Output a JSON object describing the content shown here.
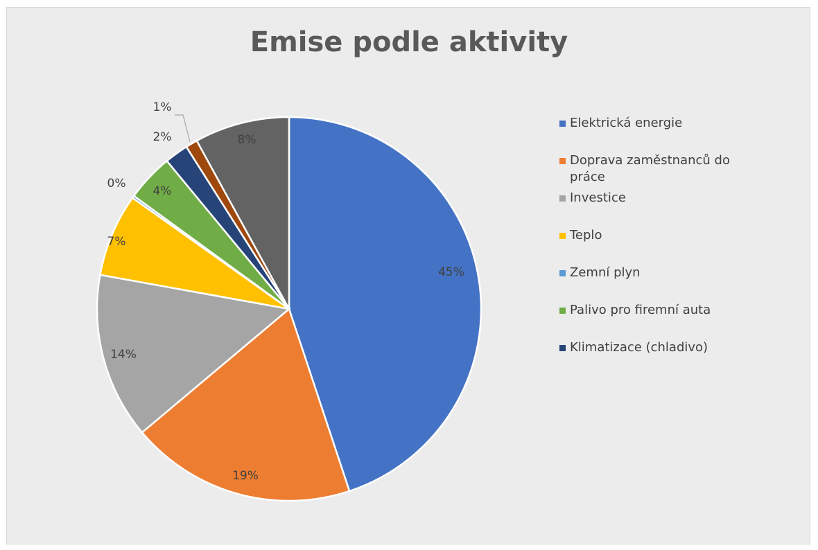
{
  "chart_data": {
    "type": "pie",
    "title": "Emise podle aktivity",
    "slices": [
      {
        "name": "Elektrická energie",
        "value": 45,
        "label": "45%",
        "color": "#4472C4"
      },
      {
        "name": "Doprava zaměstnanců do práce",
        "value": 19,
        "label": "19%",
        "color": "#ED7D31"
      },
      {
        "name": "Investice",
        "value": 14,
        "label": "14%",
        "color": "#A5A5A5"
      },
      {
        "name": "Teplo",
        "value": 7,
        "label": "7%",
        "color": "#FFC000"
      },
      {
        "name": "Zemní plyn",
        "value": 0.2,
        "label": "0%",
        "color": "#5B9BD5"
      },
      {
        "name": "Palivo pro firemní auta",
        "value": 4,
        "label": "4%",
        "color": "#70AD47"
      },
      {
        "name": "Klimatizace (chladivo)",
        "value": 2,
        "label": "2%",
        "color": "#264478"
      },
      {
        "name": "",
        "value": 1,
        "label": "1%",
        "color": "#9E480E"
      },
      {
        "name": "",
        "value": 8,
        "label": "8%",
        "color": "#636363"
      }
    ],
    "legend_position": "right"
  }
}
